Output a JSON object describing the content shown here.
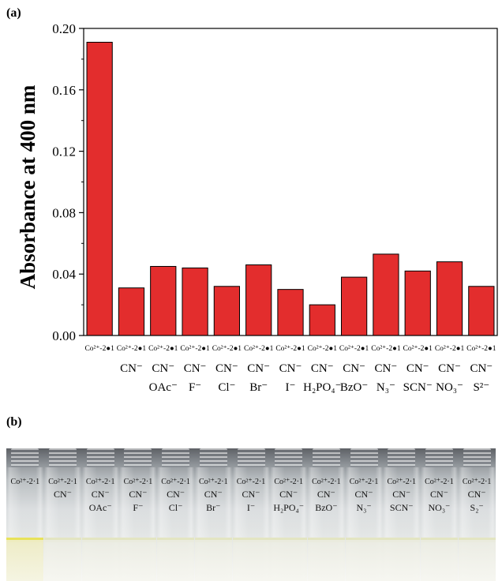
{
  "panel_a_label": "(a)",
  "panel_b_label": "(b)",
  "chart_data": {
    "type": "bar",
    "title": "",
    "ylabel": "Absorbance at 400 nm",
    "xlabel": "",
    "ylim": [
      0,
      0.2
    ],
    "yticks": [
      "0.00",
      "0.04",
      "0.08",
      "0.12",
      "0.16",
      "0.20"
    ],
    "bar_color": "#e32d2d",
    "categories": [
      {
        "line1": "Co²⁺-2●1",
        "line2": "",
        "line3": ""
      },
      {
        "line1": "Co²⁺-2●1",
        "line2": "CN⁻",
        "line3": ""
      },
      {
        "line1": "Co²⁺-2●1",
        "line2": "CN⁻",
        "line3": "OAc⁻"
      },
      {
        "line1": "Co²⁺-2●1",
        "line2": "CN⁻",
        "line3": "F⁻"
      },
      {
        "line1": "Co²⁺-2●1",
        "line2": "CN⁻",
        "line3": "Cl⁻"
      },
      {
        "line1": "Co²⁺-2●1",
        "line2": "CN⁻",
        "line3": "Br⁻"
      },
      {
        "line1": "Co²⁺-2●1",
        "line2": "CN⁻",
        "line3": "I⁻"
      },
      {
        "line1": "Co²⁺-2●1",
        "line2": "CN⁻",
        "line3": "H₂PO₄⁻"
      },
      {
        "line1": "Co²⁺-2●1",
        "line2": "CN⁻",
        "line3": "BzO⁻"
      },
      {
        "line1": "Co²⁺-2●1",
        "line2": "CN⁻",
        "line3": "N₃⁻"
      },
      {
        "line1": "Co²⁺-2●1",
        "line2": "CN⁻",
        "line3": "SCN⁻"
      },
      {
        "line1": "Co²⁺-2●1",
        "line2": "CN⁻",
        "line3": "NO₃⁻"
      },
      {
        "line1": "Co²⁺-2●1",
        "line2": "CN⁻",
        "line3": "S²⁻"
      }
    ],
    "values": [
      0.191,
      0.031,
      0.045,
      0.044,
      0.032,
      0.046,
      0.03,
      0.02,
      0.038,
      0.053,
      0.042,
      0.048,
      0.032
    ]
  },
  "photo_vials": [
    {
      "line1": "Co²⁺-2·1",
      "line2": "",
      "line3": "",
      "yellow": true
    },
    {
      "line1": "Co²⁺-2·1",
      "line2": "CN⁻",
      "line3": "",
      "yellow": false
    },
    {
      "line1": "Co²⁺-2·1",
      "line2": "CN⁻",
      "line3": "OAc⁻",
      "yellow": false
    },
    {
      "line1": "Co²⁺-2·1",
      "line2": "CN⁻",
      "line3": "F⁻",
      "yellow": false
    },
    {
      "line1": "Co²⁺-2·1",
      "line2": "CN⁻",
      "line3": "Cl⁻",
      "yellow": false
    },
    {
      "line1": "Co²⁺-2·1",
      "line2": "CN⁻",
      "line3": "Br⁻",
      "yellow": false
    },
    {
      "line1": "Co²⁺-2·1",
      "line2": "CN⁻",
      "line3": "I⁻",
      "yellow": false
    },
    {
      "line1": "Co²⁺-2·1",
      "line2": "CN⁻",
      "line3": "H₂PO₄⁻",
      "yellow": false
    },
    {
      "line1": "Co²⁺-2·1",
      "line2": "CN⁻",
      "line3": "BzO⁻",
      "yellow": false
    },
    {
      "line1": "Co²⁺-2·1",
      "line2": "CN⁻",
      "line3": "N₃⁻",
      "yellow": false
    },
    {
      "line1": "Co²⁺-2·1",
      "line2": "CN⁻",
      "line3": "SCN⁻",
      "yellow": false
    },
    {
      "line1": "Co²⁺-2·1",
      "line2": "CN⁻",
      "line3": "NO₃⁻",
      "yellow": false
    },
    {
      "line1": "Co²⁺-2·1",
      "line2": "CN⁻",
      "line3": "S₂⁻",
      "yellow": false
    }
  ]
}
